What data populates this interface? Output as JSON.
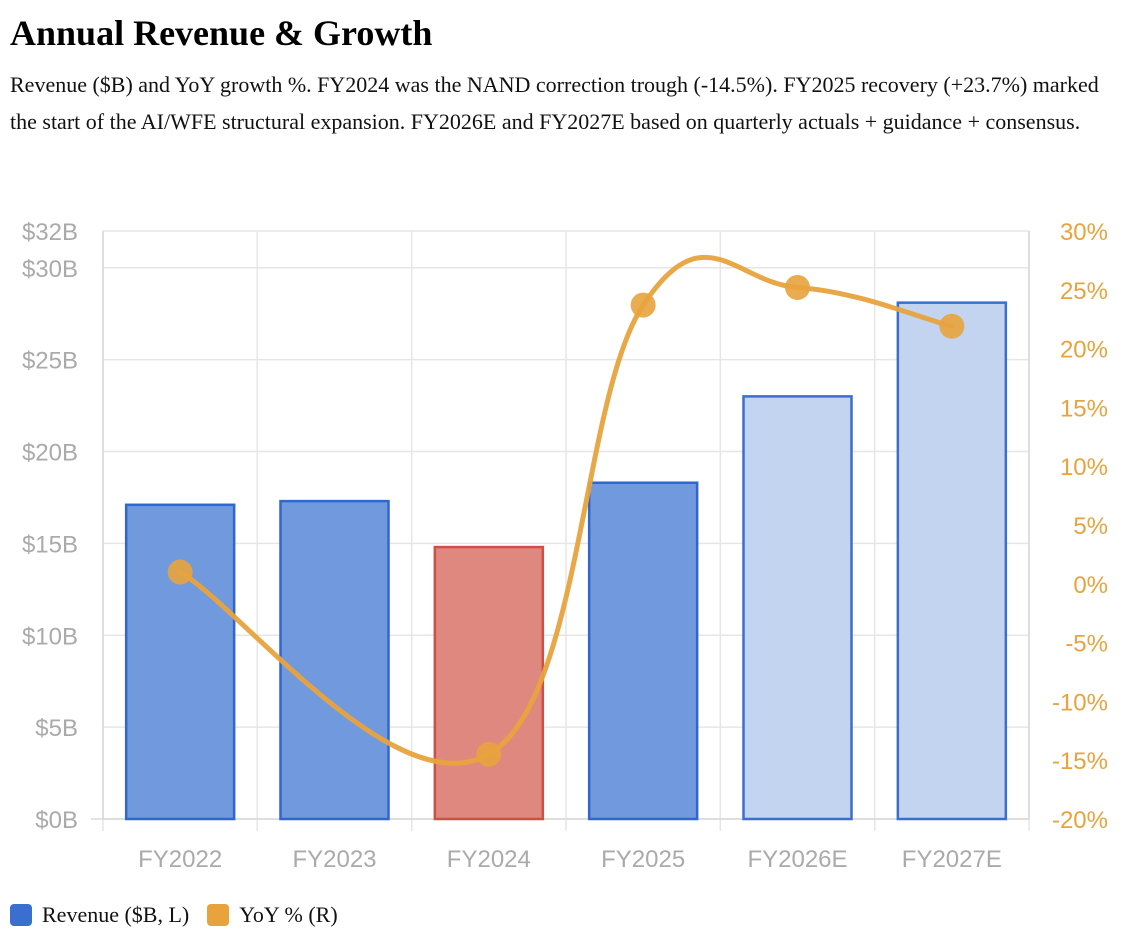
{
  "header": {
    "title": "Annual Revenue & Growth",
    "subtitle": "Revenue ($B) and YoY growth %. FY2024 was the NAND correction trough (-14.5%). FY2025 recovery (+23.7%) marked the start of the AI/WFE structural expansion. FY2026E and FY2027E based on quarterly actuals + guidance + consensus."
  },
  "legend": [
    {
      "label": "Revenue ($B, L)",
      "color": "#3a6fd0"
    },
    {
      "label": "YoY % (R)",
      "color": "#e8a33d"
    }
  ],
  "colors": {
    "actual_fill": "#7099de",
    "actual_stroke": "#2f67cf",
    "trough_fill": "#df8880",
    "trough_stroke": "#cf4f45",
    "estimate_fill": "#c3d4f0",
    "estimate_stroke": "#3a6fd0",
    "line": "#e8a33d",
    "left_axis_text": "#aaaaaa",
    "right_axis_text": "#e8a33d",
    "grid": "#e6e6e6"
  },
  "chart_data": {
    "type": "bar",
    "categories": [
      "FY2022",
      "FY2023",
      "FY2024",
      "FY2025",
      "FY2026E",
      "FY2027E"
    ],
    "series": [
      {
        "name": "Revenue ($B, L)",
        "values": [
          17.1,
          17.3,
          14.8,
          18.3,
          23.0,
          28.1
        ],
        "axis": "left",
        "type": "bar",
        "styles": [
          "actual",
          "actual",
          "trough",
          "actual",
          "estimate",
          "estimate"
        ]
      },
      {
        "name": "YoY % (R)",
        "values": [
          1.0,
          null,
          -14.5,
          23.7,
          25.2,
          21.9
        ],
        "axis": "right",
        "type": "line"
      }
    ],
    "left_axis": {
      "ticks": [
        "$32B",
        "$30B",
        "$25B",
        "$20B",
        "$15B",
        "$10B",
        "$5B",
        "$0B"
      ],
      "tick_values": [
        32,
        30,
        25,
        20,
        15,
        10,
        5,
        0
      ],
      "ylim": [
        0,
        32
      ]
    },
    "right_axis": {
      "ticks": [
        "30%",
        "25%",
        "20%",
        "15%",
        "10%",
        "5%",
        "0%",
        "-5%",
        "-10%",
        "-15%",
        "-20%"
      ],
      "tick_values": [
        30,
        25,
        20,
        15,
        10,
        5,
        0,
        -5,
        -10,
        -15,
        -20
      ],
      "ylim": [
        -20,
        30
      ]
    },
    "grid": true,
    "legend_position": "bottom-left"
  }
}
